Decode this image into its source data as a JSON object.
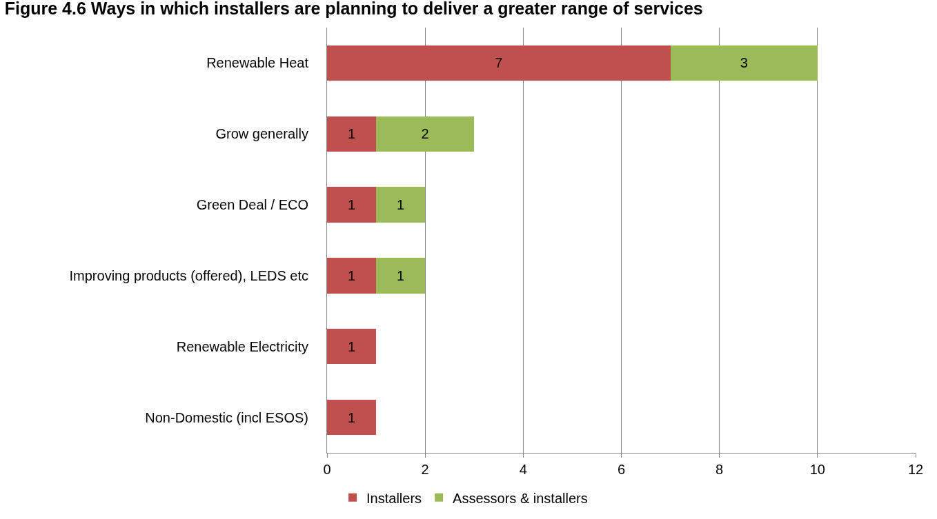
{
  "chart_data": {
    "type": "bar",
    "title": "Figure 4.6 Ways in which installers are planning to deliver a greater range of services",
    "categories": [
      "Renewable Heat",
      "Grow generally",
      "Green Deal / ECO",
      "Improving products (offered), LEDS etc",
      "Renewable Electricity",
      "Non-Domestic (incl ESOS)"
    ],
    "series": [
      {
        "name": "Installers",
        "color": "#c0504d",
        "values": [
          7,
          1,
          1,
          1,
          1,
          1
        ]
      },
      {
        "name": "Assessors & installers",
        "color": "#9bbb59",
        "values": [
          3,
          2,
          1,
          1,
          null,
          null
        ]
      }
    ],
    "stacked": true,
    "orientation": "horizontal",
    "xlim": [
      0,
      12
    ],
    "xticks": [
      0,
      2,
      4,
      6,
      8,
      10,
      12
    ],
    "grid": "x",
    "legend": "bottom",
    "data_labels": true
  }
}
